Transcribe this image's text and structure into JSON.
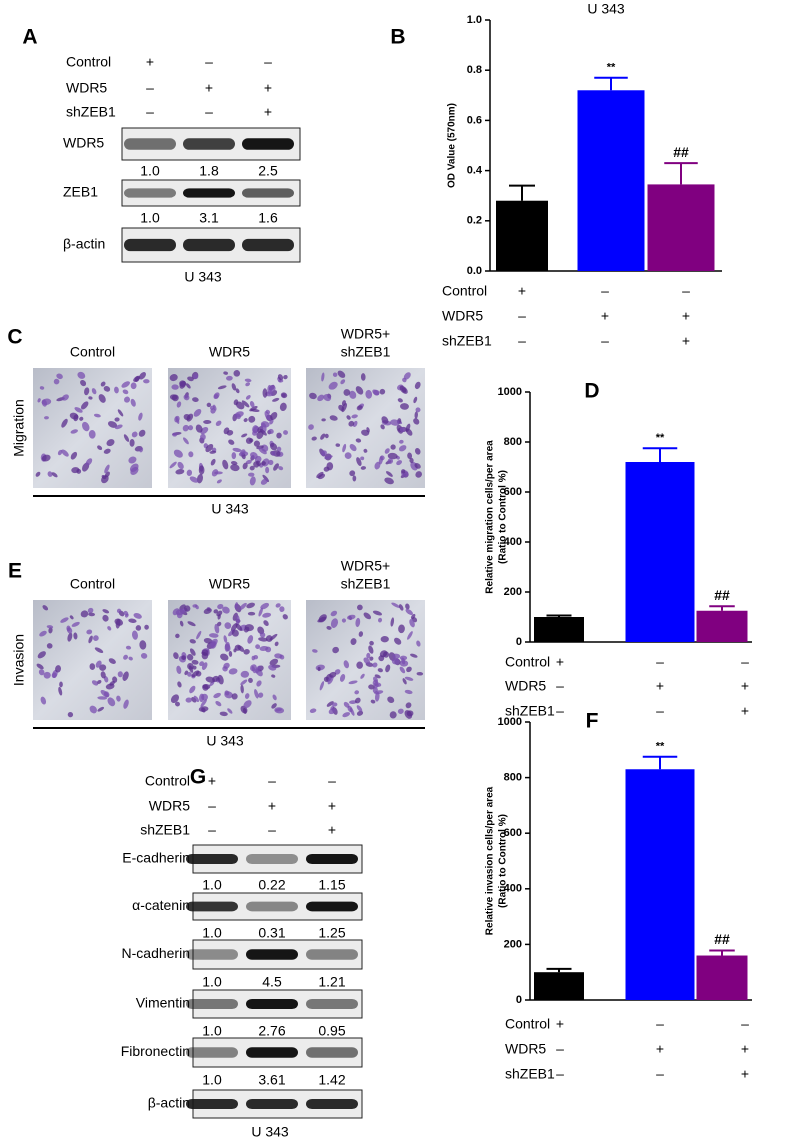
{
  "panel_labels": [
    "A",
    "B",
    "C",
    "D",
    "E",
    "F",
    "G"
  ],
  "blot_a": {
    "conditions": [
      {
        "name": "Control",
        "signs": [
          "+",
          "–",
          "–"
        ]
      },
      {
        "name": "WDR5",
        "signs": [
          "–",
          "+",
          "+"
        ]
      },
      {
        "name": "shZEB1",
        "signs": [
          "–",
          "–",
          "+"
        ]
      }
    ],
    "bands": [
      {
        "name": "WDR5",
        "quant": [
          "1.0",
          "1.8",
          "2.5"
        ]
      },
      {
        "name": "ZEB1",
        "quant": [
          "1.0",
          "3.1",
          "1.6"
        ]
      },
      {
        "name": "β-actin"
      }
    ],
    "cell_line": "U 343"
  },
  "migration": {
    "row_label": "Migration",
    "columns": [
      [
        "Control"
      ],
      [
        "WDR5"
      ],
      [
        "WDR5+",
        "shZEB1"
      ]
    ],
    "cell_line": "U 343"
  },
  "invasion": {
    "row_label": "Invasion",
    "columns": [
      [
        "Control"
      ],
      [
        "WDR5"
      ],
      [
        "WDR5+",
        "shZEB1"
      ]
    ],
    "cell_line": "U 343"
  },
  "blot_g": {
    "conditions": [
      {
        "name": "Control",
        "signs": [
          "+",
          "–",
          "–"
        ]
      },
      {
        "name": "WDR5",
        "signs": [
          "–",
          "+",
          "+"
        ]
      },
      {
        "name": "shZEB1",
        "signs": [
          "–",
          "–",
          "+"
        ]
      }
    ],
    "bands": [
      {
        "name": "E-cadherin",
        "quant": [
          "1.0",
          "0.22",
          "1.15"
        ]
      },
      {
        "name": "α-catenin",
        "quant": [
          "1.0",
          "0.31",
          "1.25"
        ]
      },
      {
        "name": "N-cadherin",
        "quant": [
          "1.0",
          "4.5",
          "1.21"
        ]
      },
      {
        "name": "Vimentin",
        "quant": [
          "1.0",
          "2.76",
          "0.95"
        ]
      },
      {
        "name": "Fibronectin",
        "quant": [
          "1.0",
          "3.61",
          "1.42"
        ]
      },
      {
        "name": "β-actin"
      }
    ],
    "cell_line": "U 343"
  },
  "chart_data": [
    {
      "type": "bar",
      "title": "U 343",
      "ylabel": [
        "OD Value (570nm)"
      ],
      "categories": [
        null,
        null,
        null
      ],
      "values": [
        0.28,
        0.72,
        0.345
      ],
      "errors": [
        0.06,
        0.05,
        0.085
      ],
      "colors": [
        "#000000",
        "#0000ff",
        "#800080"
      ],
      "annotations": [
        null,
        "**",
        "##"
      ],
      "ylim": [
        0,
        1.0
      ],
      "yticks": [
        {
          "value": 0,
          "label": "0.0"
        },
        0.2,
        0.4,
        0.6,
        0.8,
        {
          "value": 1.0,
          "label": "1.0"
        }
      ],
      "conditions": [
        {
          "name": "Control",
          "signs": [
            "+",
            "–",
            "–"
          ]
        },
        {
          "name": "WDR5",
          "signs": [
            "–",
            "+",
            "+"
          ]
        },
        {
          "name": "shZEB1",
          "signs": [
            "–",
            "–",
            "+"
          ]
        }
      ]
    },
    {
      "type": "bar",
      "ylabel": [
        "Relative migration cells/per area",
        "(Ratio to Control %)"
      ],
      "categories": [
        null,
        null,
        null
      ],
      "values": [
        100,
        720,
        125
      ],
      "errors": [
        6,
        55,
        18
      ],
      "colors": [
        "#000000",
        "#0000ff",
        "#800080"
      ],
      "annotations": [
        null,
        "**",
        "##"
      ],
      "ylim": [
        0,
        1000
      ],
      "yticks": [
        0,
        200,
        400,
        600,
        800,
        1000
      ],
      "conditions": [
        {
          "name": "Control",
          "signs": [
            "+",
            "–",
            "–"
          ]
        },
        {
          "name": "WDR5",
          "signs": [
            "–",
            "+",
            "+"
          ]
        },
        {
          "name": "shZEB1",
          "signs": [
            "–",
            "–",
            "+"
          ]
        }
      ]
    },
    {
      "type": "bar",
      "ylabel": [
        "Relative invasion cells/per area",
        "(Ratio to Control %)"
      ],
      "categories": [
        null,
        null,
        null
      ],
      "values": [
        100,
        830,
        160
      ],
      "errors": [
        12,
        45,
        18
      ],
      "colors": [
        "#000000",
        "#0000ff",
        "#800080"
      ],
      "annotations": [
        null,
        "**",
        "##"
      ],
      "ylim": [
        0,
        1000
      ],
      "yticks": [
        0,
        200,
        400,
        600,
        800,
        1000
      ],
      "conditions": [
        {
          "name": "Control",
          "signs": [
            "+",
            "–",
            "–"
          ]
        },
        {
          "name": "WDR5",
          "signs": [
            "–",
            "+",
            "+"
          ]
        },
        {
          "name": "shZEB1",
          "signs": [
            "–",
            "–",
            "+"
          ]
        }
      ]
    }
  ]
}
